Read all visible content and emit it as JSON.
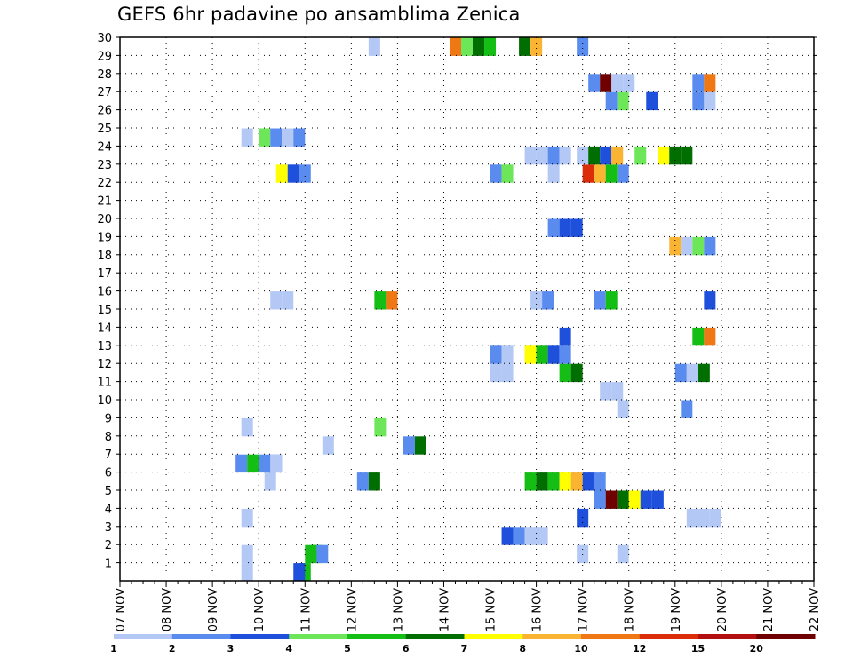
{
  "chart_data": {
    "type": "heatmap",
    "title": "GEFS 6hr padavine po ansamblima Zenica",
    "xlabel": "",
    "ylabel": "",
    "x_tick_labels": [
      "07 NOV",
      "08 NOV",
      "09 NOV",
      "10 NOV",
      "11 NOV",
      "12 NOV",
      "13 NOV",
      "14 NOV",
      "15 NOV",
      "16 NOV",
      "17 NOV",
      "18 NOV",
      "19 NOV",
      "20 NOV",
      "21 NOV",
      "22 NOV"
    ],
    "xlim": [
      0,
      60
    ],
    "ylim": [
      0,
      30
    ],
    "y_ticks": [
      1,
      2,
      3,
      4,
      5,
      6,
      7,
      8,
      9,
      10,
      11,
      12,
      13,
      14,
      15,
      16,
      17,
      18,
      19,
      20,
      21,
      22,
      23,
      24,
      25,
      26,
      27,
      28,
      29,
      30
    ],
    "grid": true,
    "legend": {
      "placement": "bottom",
      "tick_labels": [
        "1",
        "2",
        "3",
        "4",
        "5",
        "6",
        "7",
        "8",
        "10",
        "12",
        "15",
        "20"
      ],
      "colors": [
        "#b4c8f5",
        "#5a8cf0",
        "#1e50dc",
        "#6ee65a",
        "#14be14",
        "#006e00",
        "#ffff00",
        "#fab432",
        "#f07814",
        "#dc2d0a",
        "#b40f0f",
        "#6e0000"
      ]
    },
    "cell_grid_note": "x = 6-hour step index from 07 NOV 00 (4 steps per day); y = ensemble member",
    "cells": [
      {
        "x": 10.5,
        "y": 1,
        "c": 0
      },
      {
        "x": 10.5,
        "y": 0,
        "c": 0
      },
      {
        "x": 15.5,
        "y": 0,
        "c": 4
      },
      {
        "x": 16,
        "y": 1,
        "c": 4
      },
      {
        "x": 16.5,
        "y": 1,
        "c": 4
      },
      {
        "x": 17,
        "y": 1,
        "c": 1
      },
      {
        "x": 15,
        "y": 0,
        "c": 2
      },
      {
        "x": 10.5,
        "y": 3,
        "c": 0
      },
      {
        "x": 39.5,
        "y": 1,
        "c": 0
      },
      {
        "x": 43,
        "y": 1,
        "c": 0
      },
      {
        "x": 33,
        "y": 2,
        "c": 2
      },
      {
        "x": 34,
        "y": 2,
        "c": 1
      },
      {
        "x": 35.5,
        "y": 2,
        "c": 0
      },
      {
        "x": 36,
        "y": 2,
        "c": 0
      },
      {
        "x": 35,
        "y": 2,
        "c": 0
      },
      {
        "x": 39.5,
        "y": 3,
        "c": 2
      },
      {
        "x": 49,
        "y": 3,
        "c": 0
      },
      {
        "x": 50,
        "y": 3,
        "c": 0
      },
      {
        "x": 51,
        "y": 3,
        "c": 0
      },
      {
        "x": 41,
        "y": 4,
        "c": 1
      },
      {
        "x": 42,
        "y": 4,
        "c": 11
      },
      {
        "x": 43,
        "y": 4,
        "c": 5
      },
      {
        "x": 44,
        "y": 4,
        "c": 6
      },
      {
        "x": 45,
        "y": 4,
        "c": 2
      },
      {
        "x": 46,
        "y": 4,
        "c": 1
      },
      {
        "x": 46,
        "y": 4,
        "c": 2
      },
      {
        "x": 20.5,
        "y": 5,
        "c": 1
      },
      {
        "x": 21.5,
        "y": 5,
        "c": 5
      },
      {
        "x": 12.5,
        "y": 5,
        "c": 0
      },
      {
        "x": 35,
        "y": 5,
        "c": 4
      },
      {
        "x": 36,
        "y": 5,
        "c": 5
      },
      {
        "x": 37,
        "y": 5,
        "c": 4
      },
      {
        "x": 38,
        "y": 5,
        "c": 6
      },
      {
        "x": 39,
        "y": 5,
        "c": 7
      },
      {
        "x": 40,
        "y": 5,
        "c": 2
      },
      {
        "x": 41,
        "y": 5,
        "c": 1
      },
      {
        "x": 10,
        "y": 6,
        "c": 1
      },
      {
        "x": 11,
        "y": 6,
        "c": 4
      },
      {
        "x": 12,
        "y": 6,
        "c": 1
      },
      {
        "x": 13,
        "y": 6,
        "c": 1
      },
      {
        "x": 13,
        "y": 6,
        "c": 0
      },
      {
        "x": 17.5,
        "y": 7,
        "c": 0
      },
      {
        "x": 24.5,
        "y": 7,
        "c": 1
      },
      {
        "x": 25.5,
        "y": 7,
        "c": 5
      },
      {
        "x": 10.5,
        "y": 8,
        "c": 0
      },
      {
        "x": 22,
        "y": 8,
        "c": 3
      },
      {
        "x": 43,
        "y": 9,
        "c": 0
      },
      {
        "x": 48.5,
        "y": 9,
        "c": 1
      },
      {
        "x": 41.5,
        "y": 10,
        "c": 0
      },
      {
        "x": 42.5,
        "y": 10,
        "c": 0
      },
      {
        "x": 32,
        "y": 11,
        "c": 0
      },
      {
        "x": 33,
        "y": 11,
        "c": 0
      },
      {
        "x": 38,
        "y": 11,
        "c": 4
      },
      {
        "x": 39,
        "y": 11,
        "c": 5
      },
      {
        "x": 48,
        "y": 11,
        "c": 1
      },
      {
        "x": 49,
        "y": 11,
        "c": 0
      },
      {
        "x": 50,
        "y": 11,
        "c": 5
      },
      {
        "x": 32,
        "y": 12,
        "c": 1
      },
      {
        "x": 33,
        "y": 12,
        "c": 0
      },
      {
        "x": 35,
        "y": 12,
        "c": 6
      },
      {
        "x": 36,
        "y": 12,
        "c": 4
      },
      {
        "x": 37,
        "y": 12,
        "c": 2
      },
      {
        "x": 38,
        "y": 12,
        "c": 1
      },
      {
        "x": 38,
        "y": 13,
        "c": 2
      },
      {
        "x": 49.5,
        "y": 13,
        "c": 4
      },
      {
        "x": 50.5,
        "y": 13,
        "c": 8
      },
      {
        "x": 13,
        "y": 15,
        "c": 0
      },
      {
        "x": 14,
        "y": 15,
        "c": 0
      },
      {
        "x": 22,
        "y": 15,
        "c": 4
      },
      {
        "x": 23,
        "y": 15,
        "c": 8
      },
      {
        "x": 35.5,
        "y": 15,
        "c": 0
      },
      {
        "x": 36.5,
        "y": 15,
        "c": 1
      },
      {
        "x": 41,
        "y": 15,
        "c": 1
      },
      {
        "x": 42,
        "y": 15,
        "c": 4
      },
      {
        "x": 50.5,
        "y": 15,
        "c": 2
      },
      {
        "x": 47.5,
        "y": 18,
        "c": 7
      },
      {
        "x": 48.5,
        "y": 18,
        "c": 0
      },
      {
        "x": 49.5,
        "y": 18,
        "c": 3
      },
      {
        "x": 50.5,
        "y": 18,
        "c": 1
      },
      {
        "x": 37,
        "y": 19,
        "c": 1
      },
      {
        "x": 38,
        "y": 19,
        "c": 2
      },
      {
        "x": 39,
        "y": 19,
        "c": 2
      },
      {
        "x": 13.5,
        "y": 22,
        "c": 6
      },
      {
        "x": 14.5,
        "y": 22,
        "c": 2
      },
      {
        "x": 15.5,
        "y": 22,
        "c": 1
      },
      {
        "x": 32,
        "y": 22,
        "c": 1
      },
      {
        "x": 33,
        "y": 22,
        "c": 3
      },
      {
        "x": 37,
        "y": 22,
        "c": 0
      },
      {
        "x": 40,
        "y": 22,
        "c": 9
      },
      {
        "x": 41,
        "y": 22,
        "c": 7
      },
      {
        "x": 42,
        "y": 22,
        "c": 4
      },
      {
        "x": 43,
        "y": 22,
        "c": 1
      },
      {
        "x": 35,
        "y": 23,
        "c": 0
      },
      {
        "x": 36,
        "y": 23,
        "c": 0
      },
      {
        "x": 37,
        "y": 23,
        "c": 1
      },
      {
        "x": 38,
        "y": 23,
        "c": 0
      },
      {
        "x": 39.5,
        "y": 23,
        "c": 0
      },
      {
        "x": 40.5,
        "y": 23,
        "c": 5
      },
      {
        "x": 41.5,
        "y": 23,
        "c": 2
      },
      {
        "x": 42.5,
        "y": 23,
        "c": 7
      },
      {
        "x": 44.5,
        "y": 23,
        "c": 3
      },
      {
        "x": 46.5,
        "y": 23,
        "c": 6
      },
      {
        "x": 47.5,
        "y": 23,
        "c": 5
      },
      {
        "x": 48.5,
        "y": 23,
        "c": 5
      },
      {
        "x": 10.5,
        "y": 24,
        "c": 0
      },
      {
        "x": 12,
        "y": 24,
        "c": 3
      },
      {
        "x": 13,
        "y": 24,
        "c": 1
      },
      {
        "x": 14,
        "y": 24,
        "c": 0
      },
      {
        "x": 15,
        "y": 24,
        "c": 1
      },
      {
        "x": 42,
        "y": 26,
        "c": 1
      },
      {
        "x": 43,
        "y": 26,
        "c": 3
      },
      {
        "x": 45.5,
        "y": 26,
        "c": 2
      },
      {
        "x": 49.5,
        "y": 26,
        "c": 1
      },
      {
        "x": 50.5,
        "y": 26,
        "c": 0
      },
      {
        "x": 40.5,
        "y": 27,
        "c": 1
      },
      {
        "x": 41.5,
        "y": 27,
        "c": 11
      },
      {
        "x": 42.5,
        "y": 27,
        "c": 0
      },
      {
        "x": 43.5,
        "y": 27,
        "c": 0
      },
      {
        "x": 49.5,
        "y": 27,
        "c": 1
      },
      {
        "x": 50.5,
        "y": 27,
        "c": 8
      },
      {
        "x": 21.5,
        "y": 29,
        "c": 0
      },
      {
        "x": 28.5,
        "y": 29,
        "c": 8
      },
      {
        "x": 29.5,
        "y": 29,
        "c": 3
      },
      {
        "x": 30.5,
        "y": 29,
        "c": 5
      },
      {
        "x": 31.5,
        "y": 29,
        "c": 4
      },
      {
        "x": 34.5,
        "y": 29,
        "c": 5
      },
      {
        "x": 35.5,
        "y": 29,
        "c": 7
      },
      {
        "x": 39.5,
        "y": 29,
        "c": 1
      }
    ]
  }
}
